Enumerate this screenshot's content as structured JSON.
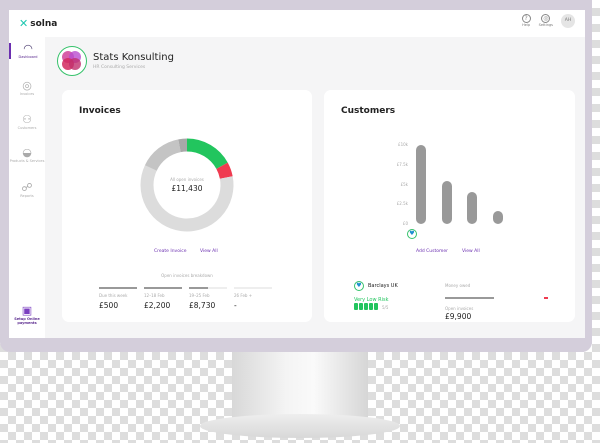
{
  "app": {
    "logo": "solna"
  },
  "topbar": {
    "help": "Help",
    "settings": "Settings",
    "avatar": "AH"
  },
  "sidebar": {
    "items": [
      {
        "label": "Dashboard",
        "icon": "gauge-icon",
        "active": true
      },
      {
        "label": "Invoices",
        "icon": "target-icon"
      },
      {
        "label": "Customers",
        "icon": "people-icon"
      },
      {
        "label": "Products & Services",
        "icon": "basket-icon"
      },
      {
        "label": "Reports",
        "icon": "nodes-icon"
      }
    ],
    "promo": "Setup Online payments"
  },
  "company": {
    "name": "Stats Konsulting",
    "subtitle": "HR Consulting Services"
  },
  "invoices": {
    "title": "Invoices",
    "center_label": "All open invoices",
    "total": "£11,430",
    "segments": [
      {
        "color": "#22c55e",
        "share": 0.17
      },
      {
        "color": "#ef3b50",
        "share": 0.05
      },
      {
        "color": "#dcdcdc",
        "share": 0.6
      },
      {
        "color": "#c4c4c4",
        "share": 0.15
      },
      {
        "color": "#a8a8a8",
        "share": 0.03
      }
    ],
    "create_label": "Create Invoice",
    "view_all": "View All",
    "breakdown_title": "Open invoices breakdown",
    "breakdown": [
      {
        "label": "Due this week",
        "value": "£500",
        "fill": 1
      },
      {
        "label": "12–18 Feb",
        "value": "£2,200",
        "fill": 1
      },
      {
        "label": "19–25 Feb",
        "value": "£8,730",
        "fill": 0.5
      },
      {
        "label": "26 Feb +",
        "value": "-",
        "fill": 0
      }
    ]
  },
  "customers": {
    "title": "Customers",
    "add_label": "Add Customer",
    "view_all": "View All",
    "chart_data": {
      "type": "bar",
      "yticks": [
        "£10k",
        "£7.5k",
        "£5k",
        "£2.5k",
        "£0"
      ],
      "ylim": [
        0,
        10000
      ],
      "values": [
        10000,
        5500,
        4000,
        1600
      ]
    },
    "top_customer": {
      "name": "Barclays UK",
      "risk": "Very Low Risk",
      "score": "5/5",
      "score_value": 5,
      "money_owed_label": "Money owed",
      "open_invoices_label": "Open invoices",
      "open_invoices": "£9,900"
    }
  },
  "colors": {
    "accent": "#6b2fb0",
    "green": "#22c55e",
    "red": "#ef3b50"
  }
}
